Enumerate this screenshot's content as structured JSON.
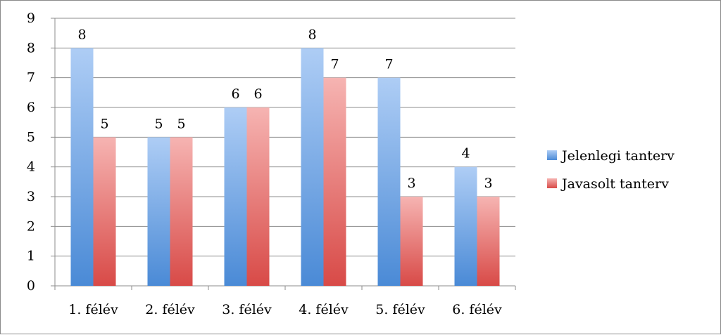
{
  "chart_data": {
    "type": "bar",
    "categories": [
      "1. félév",
      "2. félév",
      "3. félév",
      "4. félév",
      "5. félév",
      "6. félév"
    ],
    "series": [
      {
        "name": "Jelenlegi tanterv",
        "values": [
          8,
          5,
          6,
          8,
          7,
          4
        ],
        "color_top": "#aecdf5",
        "color_bottom": "#4a8ad6"
      },
      {
        "name": "Javasolt tanterv",
        "values": [
          5,
          5,
          6,
          7,
          3,
          3
        ],
        "color_top": "#f6b4b2",
        "color_bottom": "#d84a47"
      }
    ],
    "title": "",
    "xlabel": "",
    "ylabel": "",
    "ylim": [
      0,
      9
    ],
    "yticks": [
      0,
      1,
      2,
      3,
      4,
      5,
      6,
      7,
      8,
      9
    ],
    "grid": true,
    "legend": "right",
    "data_labels": true
  }
}
